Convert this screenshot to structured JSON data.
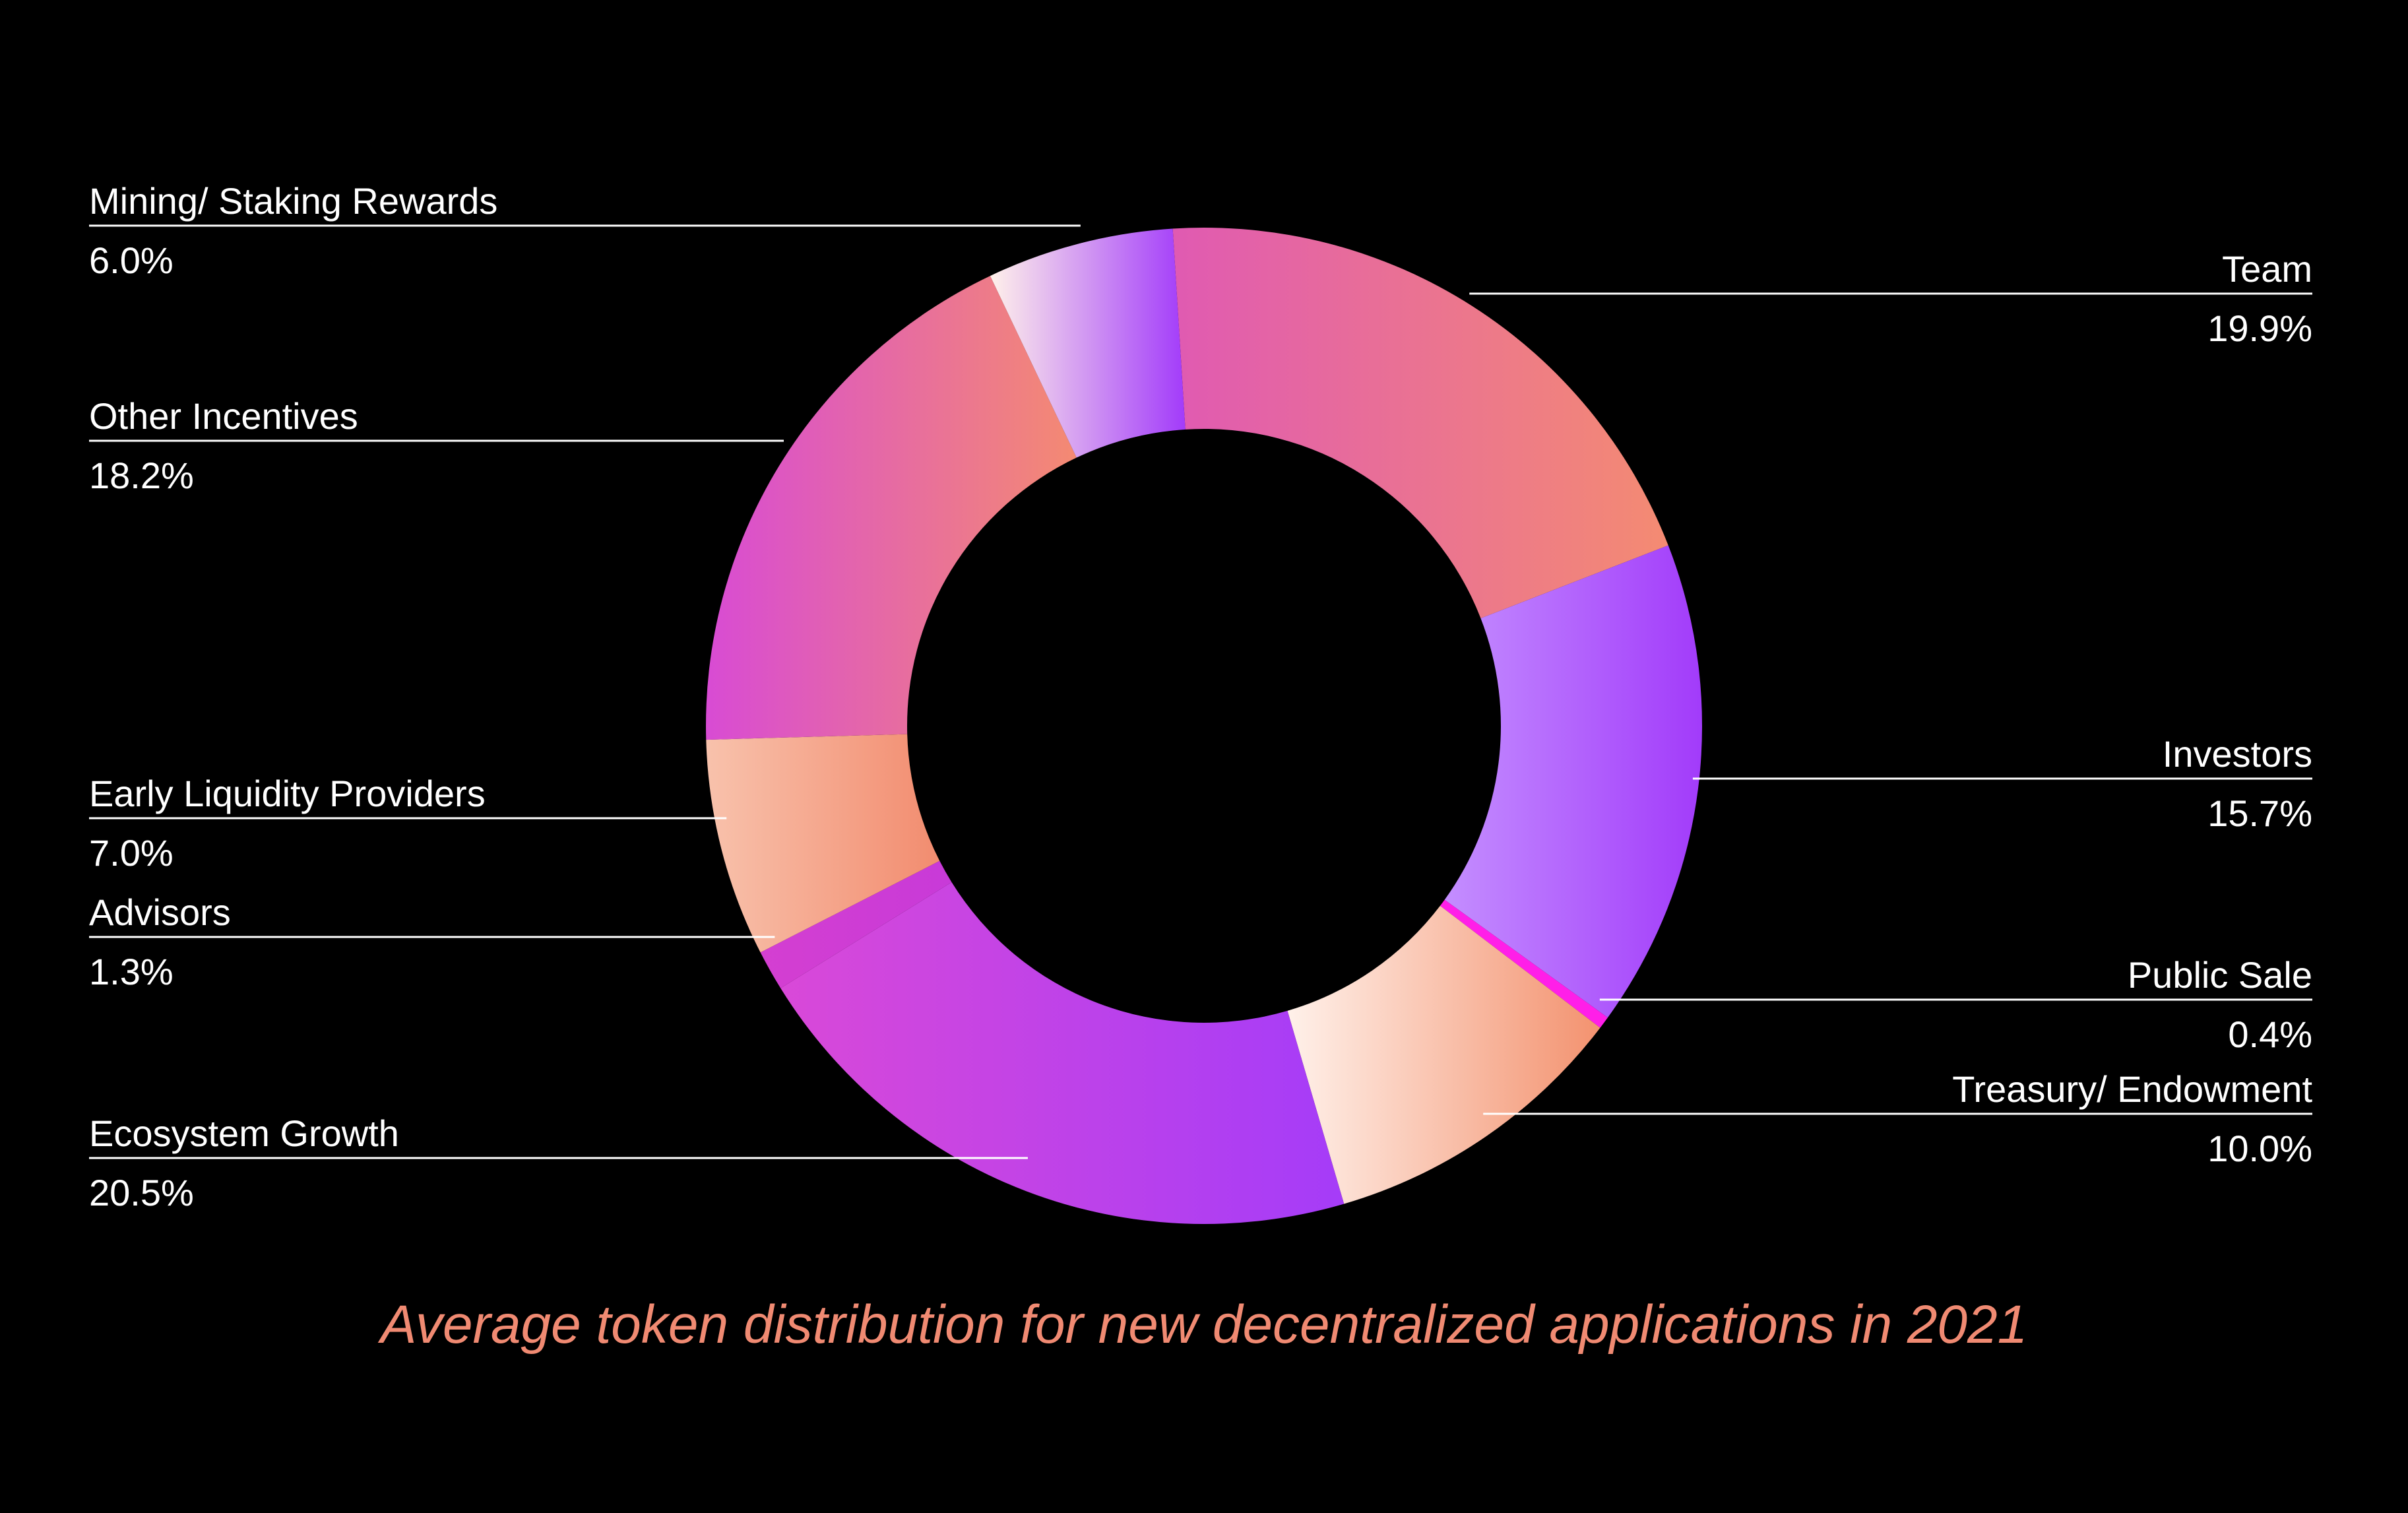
{
  "chart_data": {
    "type": "pie",
    "variant": "donut",
    "title": "Average token distribution for new decentralized applications in 2021",
    "legend": "none",
    "slices": [
      {
        "label": "Team",
        "value_label": "19.9%",
        "value": 19.9,
        "colors": [
          "#e05ab2",
          "#f48b72"
        ]
      },
      {
        "label": "Investors",
        "value_label": "15.7%",
        "value": 15.7,
        "colors": [
          "#c48eff",
          "#a23bfa"
        ]
      },
      {
        "label": "Public Sale",
        "value_label": "0.4%",
        "value": 0.4,
        "colors": [
          "#ff1fe8",
          "#ff1fe8"
        ]
      },
      {
        "label": "Treasury/ Endowment",
        "value_label": "10.0%",
        "value": 10.0,
        "colors": [
          "#fff1ea",
          "#f3926f"
        ]
      },
      {
        "label": "Ecosystem Growth",
        "value_label": "20.5%",
        "value": 20.5,
        "colors": [
          "#d949d8",
          "#a53cf8"
        ]
      },
      {
        "label": "Advisors",
        "value_label": "1.3%",
        "value": 1.3,
        "colors": [
          "#d43fd1",
          "#c83ad8"
        ]
      },
      {
        "label": "Early Liquidity Providers",
        "value_label": "7.0%",
        "value": 7.0,
        "colors": [
          "#f8c2ac",
          "#f28c6f"
        ]
      },
      {
        "label": "Other Incentives",
        "value_label": "18.2%",
        "value": 18.2,
        "colors": [
          "#d84bd4",
          "#f48a72"
        ]
      },
      {
        "label": "Mining/ Staking Rewards",
        "value_label": "6.0%",
        "value": 6.0,
        "colors": [
          "#fff1ea",
          "#a23bfa"
        ]
      }
    ]
  }
}
